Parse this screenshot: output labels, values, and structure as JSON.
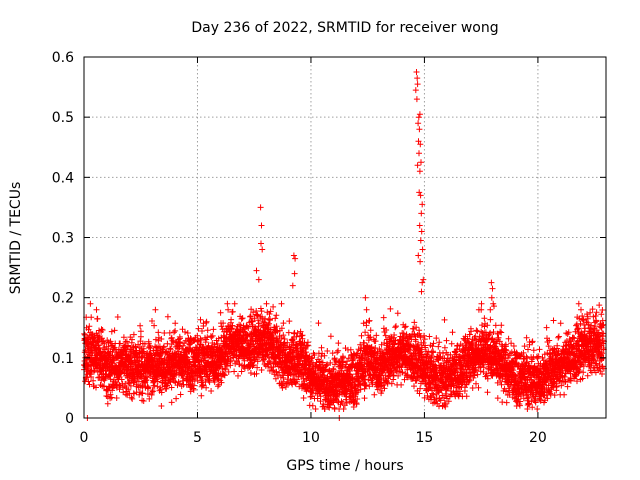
{
  "chart_data": {
    "type": "scatter",
    "title": "Day 236 of 2022, SRMTID for receiver wong",
    "xlabel": "GPS time / hours",
    "ylabel": "SRMTID / TECUs",
    "xlim": [
      0,
      23
    ],
    "ylim": [
      0,
      0.6
    ],
    "x_ticks": [
      0,
      5,
      10,
      15,
      20
    ],
    "x_tick_labels": [
      "0",
      "5",
      "10",
      "15",
      "20"
    ],
    "y_ticks": [
      0,
      0.1,
      0.2,
      0.3,
      0.4,
      0.5,
      0.6
    ],
    "y_tick_labels": [
      "0",
      "0.1",
      "0.2",
      "0.3",
      "0.4",
      "0.5",
      "0.6"
    ],
    "grid": true,
    "marker": "plus",
    "series_color": "#ff0000",
    "x_range_hours": [
      0.0,
      22.9
    ],
    "sample_interval_hours": 0.0083,
    "baseline_profile": [
      [
        0.0,
        0.1
      ],
      [
        0.5,
        0.11
      ],
      [
        1.0,
        0.085
      ],
      [
        2.0,
        0.085
      ],
      [
        3.0,
        0.085
      ],
      [
        4.0,
        0.09
      ],
      [
        5.0,
        0.095
      ],
      [
        6.0,
        0.095
      ],
      [
        6.5,
        0.13
      ],
      [
        7.0,
        0.12
      ],
      [
        7.5,
        0.12
      ],
      [
        8.0,
        0.13
      ],
      [
        8.5,
        0.11
      ],
      [
        9.0,
        0.09
      ],
      [
        9.5,
        0.1
      ],
      [
        10.0,
        0.07
      ],
      [
        10.5,
        0.06
      ],
      [
        11.0,
        0.055
      ],
      [
        11.5,
        0.06
      ],
      [
        12.0,
        0.07
      ],
      [
        12.5,
        0.1
      ],
      [
        13.0,
        0.08
      ],
      [
        13.5,
        0.1
      ],
      [
        14.0,
        0.11
      ],
      [
        14.5,
        0.1
      ],
      [
        15.0,
        0.08
      ],
      [
        15.5,
        0.065
      ],
      [
        16.0,
        0.07
      ],
      [
        16.5,
        0.075
      ],
      [
        17.0,
        0.1
      ],
      [
        17.5,
        0.11
      ],
      [
        18.0,
        0.11
      ],
      [
        18.5,
        0.08
      ],
      [
        19.0,
        0.07
      ],
      [
        19.5,
        0.065
      ],
      [
        20.0,
        0.06
      ],
      [
        20.5,
        0.075
      ],
      [
        21.0,
        0.09
      ],
      [
        21.5,
        0.1
      ],
      [
        22.0,
        0.115
      ],
      [
        22.5,
        0.12
      ],
      [
        22.9,
        0.12
      ]
    ],
    "peak_points": [
      {
        "x": 7.78,
        "y": 0.35
      },
      {
        "x": 7.82,
        "y": 0.32
      },
      {
        "x": 7.8,
        "y": 0.29
      },
      {
        "x": 7.85,
        "y": 0.28
      },
      {
        "x": 7.6,
        "y": 0.245
      },
      {
        "x": 7.7,
        "y": 0.23
      },
      {
        "x": 9.25,
        "y": 0.27
      },
      {
        "x": 9.3,
        "y": 0.265
      },
      {
        "x": 9.28,
        "y": 0.24
      },
      {
        "x": 9.2,
        "y": 0.22
      },
      {
        "x": 12.4,
        "y": 0.2
      },
      {
        "x": 12.45,
        "y": 0.18
      },
      {
        "x": 14.65,
        "y": 0.575
      },
      {
        "x": 14.68,
        "y": 0.565
      },
      {
        "x": 14.7,
        "y": 0.555
      },
      {
        "x": 14.62,
        "y": 0.545
      },
      {
        "x": 14.67,
        "y": 0.53
      },
      {
        "x": 14.8,
        "y": 0.505
      },
      {
        "x": 14.75,
        "y": 0.5
      },
      {
        "x": 14.72,
        "y": 0.49
      },
      {
        "x": 14.78,
        "y": 0.48
      },
      {
        "x": 14.74,
        "y": 0.46
      },
      {
        "x": 14.82,
        "y": 0.455
      },
      {
        "x": 14.76,
        "y": 0.44
      },
      {
        "x": 14.85,
        "y": 0.425
      },
      {
        "x": 14.7,
        "y": 0.42
      },
      {
        "x": 14.8,
        "y": 0.41
      },
      {
        "x": 14.77,
        "y": 0.375
      },
      {
        "x": 14.83,
        "y": 0.37
      },
      {
        "x": 14.9,
        "y": 0.355
      },
      {
        "x": 14.86,
        "y": 0.34
      },
      {
        "x": 14.79,
        "y": 0.32
      },
      {
        "x": 14.88,
        "y": 0.31
      },
      {
        "x": 14.84,
        "y": 0.295
      },
      {
        "x": 14.92,
        "y": 0.28
      },
      {
        "x": 14.73,
        "y": 0.27
      },
      {
        "x": 14.81,
        "y": 0.26
      },
      {
        "x": 14.95,
        "y": 0.23
      },
      {
        "x": 14.9,
        "y": 0.225
      },
      {
        "x": 14.87,
        "y": 0.21
      },
      {
        "x": 17.95,
        "y": 0.225
      },
      {
        "x": 18.0,
        "y": 0.215
      },
      {
        "x": 17.97,
        "y": 0.2
      },
      {
        "x": 18.03,
        "y": 0.19
      },
      {
        "x": 17.9,
        "y": 0.18
      },
      {
        "x": 17.4,
        "y": 0.18
      },
      {
        "x": 17.5,
        "y": 0.18
      },
      {
        "x": 21.8,
        "y": 0.19
      },
      {
        "x": 21.9,
        "y": 0.18
      },
      {
        "x": 22.3,
        "y": 0.175
      },
      {
        "x": 22.2,
        "y": 0.165
      },
      {
        "x": 0.55,
        "y": 0.18
      },
      {
        "x": 0.6,
        "y": 0.165
      },
      {
        "x": 6.35,
        "y": 0.18
      },
      {
        "x": 0.15,
        "y": 0.0
      },
      {
        "x": 11.25,
        "y": 0.0
      }
    ]
  }
}
